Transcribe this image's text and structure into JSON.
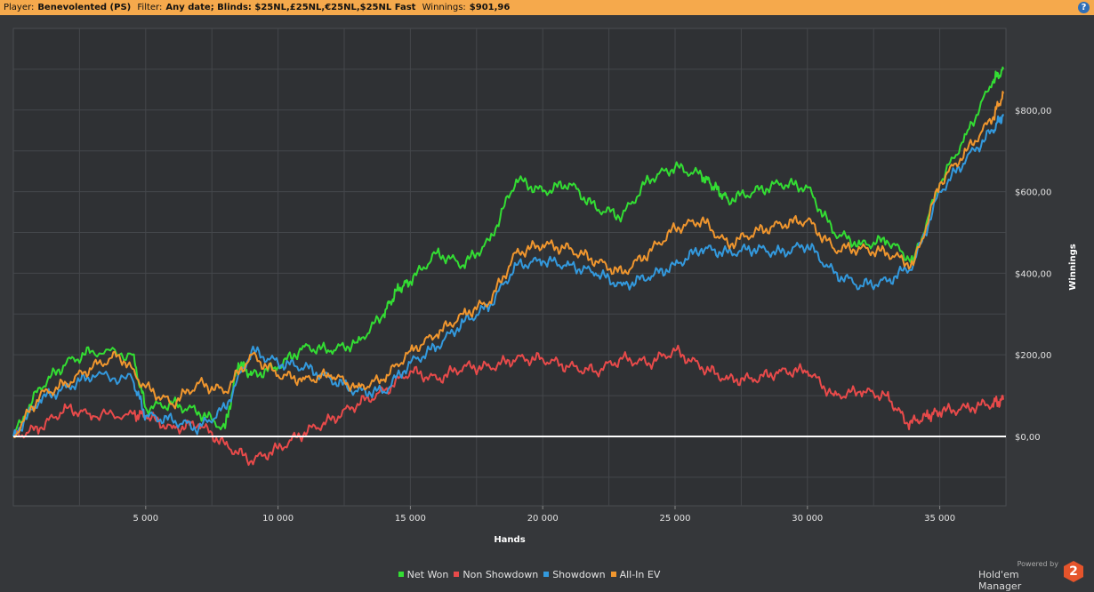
{
  "header": {
    "player_label": "Player:",
    "player": "Benevolented (PS)",
    "filter_label": "Filter:",
    "filter": "Any date; Blinds: $25NL,£25NL,€25NL,$25NL Fast",
    "winnings_label": "Winnings:",
    "winnings": "$901,96",
    "help": "?"
  },
  "chart_data": {
    "type": "line",
    "xlabel": "Hands",
    "ylabel": "Winnings",
    "xlim": [
      0,
      37500
    ],
    "ylim": [
      -170,
      1000
    ],
    "x_ticks": [
      5000,
      10000,
      15000,
      20000,
      25000,
      30000,
      35000
    ],
    "x_tick_labels": [
      "5 000",
      "10 000",
      "15 000",
      "20 000",
      "25 000",
      "30 000",
      "35 000"
    ],
    "y_ticks": [
      0,
      200,
      400,
      600,
      800
    ],
    "y_tick_labels": [
      "$0,00",
      "$200,00",
      "$400,00",
      "$600,00",
      "$800,00"
    ],
    "grid": true,
    "legend_position": "bottom",
    "series": [
      {
        "name": "Net Won",
        "color": "#33dd33",
        "x": [
          0,
          1000,
          2000,
          3000,
          4500,
          5000,
          6000,
          7000,
          8000,
          8500,
          9000,
          10000,
          11000,
          12000,
          13000,
          14000,
          14500,
          15000,
          16000,
          17000,
          18000,
          19000,
          20000,
          21000,
          22000,
          23000,
          24000,
          25000,
          26000,
          26500,
          27000,
          28000,
          29000,
          30000,
          31000,
          32000,
          33000,
          34000,
          35000,
          36000,
          37000,
          37400
        ],
        "y": [
          0,
          120,
          180,
          210,
          200,
          70,
          80,
          60,
          20,
          180,
          150,
          170,
          220,
          210,
          230,
          300,
          360,
          380,
          450,
          420,
          480,
          630,
          600,
          620,
          560,
          540,
          630,
          660,
          640,
          610,
          580,
          600,
          620,
          610,
          500,
          470,
          480,
          430,
          620,
          740,
          870,
          900
        ]
      },
      {
        "name": "Non Showdown",
        "color": "#e84a4a",
        "x": [
          0,
          1000,
          2000,
          3000,
          4500,
          5000,
          6000,
          7000,
          8000,
          9000,
          10000,
          11000,
          12000,
          13000,
          14000,
          15000,
          16000,
          17000,
          18000,
          19000,
          20000,
          21000,
          22000,
          23000,
          24000,
          25000,
          26000,
          27000,
          28000,
          29000,
          30000,
          31000,
          32000,
          33000,
          33800,
          34500,
          35000,
          36000,
          37000,
          37400
        ],
        "y": [
          0,
          20,
          70,
          50,
          55,
          50,
          20,
          30,
          -20,
          -60,
          -30,
          10,
          40,
          80,
          110,
          160,
          140,
          170,
          170,
          190,
          190,
          170,
          160,
          190,
          180,
          210,
          170,
          140,
          140,
          160,
          160,
          100,
          110,
          100,
          30,
          50,
          60,
          70,
          80,
          90
        ]
      },
      {
        "name": "Showdown",
        "color": "#3399dd",
        "x": [
          0,
          1000,
          2000,
          3000,
          4500,
          5000,
          6000,
          7000,
          8000,
          9000,
          10000,
          11000,
          12000,
          13000,
          14000,
          15000,
          16000,
          17000,
          18000,
          19000,
          20000,
          21000,
          22000,
          23000,
          24000,
          25000,
          26000,
          27000,
          28000,
          29000,
          30000,
          31000,
          32000,
          33000,
          34000,
          35000,
          36000,
          37000,
          37400
        ],
        "y": [
          0,
          90,
          120,
          150,
          140,
          50,
          40,
          20,
          70,
          210,
          180,
          170,
          140,
          110,
          110,
          180,
          220,
          280,
          320,
          420,
          430,
          420,
          400,
          370,
          390,
          420,
          460,
          450,
          460,
          450,
          470,
          400,
          370,
          380,
          420,
          600,
          680,
          750,
          790
        ]
      },
      {
        "name": "All-In EV",
        "color": "#f0962e",
        "x": [
          0,
          1000,
          2000,
          3000,
          4000,
          5000,
          6000,
          7000,
          8000,
          9000,
          10000,
          11000,
          12000,
          13000,
          14000,
          15000,
          16000,
          17000,
          18000,
          19000,
          20000,
          21000,
          22000,
          23000,
          24000,
          25000,
          26000,
          27000,
          28000,
          29000,
          30000,
          31000,
          32000,
          33000,
          34000,
          35000,
          36000,
          37000,
          37400
        ],
        "y": [
          0,
          100,
          130,
          170,
          200,
          120,
          80,
          130,
          110,
          200,
          150,
          140,
          150,
          120,
          140,
          210,
          250,
          300,
          330,
          450,
          470,
          460,
          430,
          400,
          450,
          510,
          530,
          470,
          500,
          520,
          530,
          460,
          460,
          450,
          420,
          620,
          700,
          780,
          840
        ]
      }
    ]
  }
}
